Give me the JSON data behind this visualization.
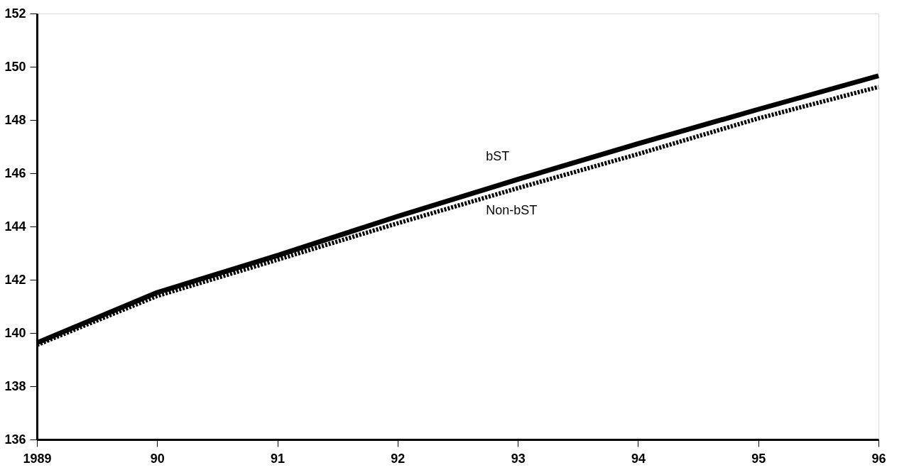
{
  "chart_data": {
    "type": "line",
    "x": [
      1989,
      1990,
      1991,
      1992,
      1993,
      1994,
      1995,
      1996
    ],
    "series": [
      {
        "name": "bST",
        "color": "#000000",
        "line_style": "solid",
        "values": [
          139.63,
          141.52,
          142.91,
          144.38,
          145.77,
          147.11,
          148.4,
          149.66
        ]
      },
      {
        "name": "Non-bST",
        "color": "#000000",
        "line_style": "dotted",
        "values": [
          139.55,
          141.39,
          142.75,
          144.12,
          145.44,
          146.72,
          148.06,
          149.24
        ]
      }
    ],
    "xlim": [
      1989,
      1996
    ],
    "xticks": [
      1989,
      {
        "value": 1990,
        "label": "90"
      },
      {
        "value": 1991,
        "label": "91"
      },
      {
        "value": 1992,
        "label": "92"
      },
      {
        "value": 1993,
        "label": "93"
      },
      {
        "value": 1994,
        "label": "94"
      },
      {
        "value": 1995,
        "label": "95"
      },
      {
        "value": 1996,
        "label": "96"
      }
    ],
    "ylim": [
      136,
      152
    ],
    "yticks": [
      136,
      138,
      140,
      142,
      144,
      146,
      148,
      150,
      152
    ],
    "grid": false,
    "marker": "none"
  }
}
